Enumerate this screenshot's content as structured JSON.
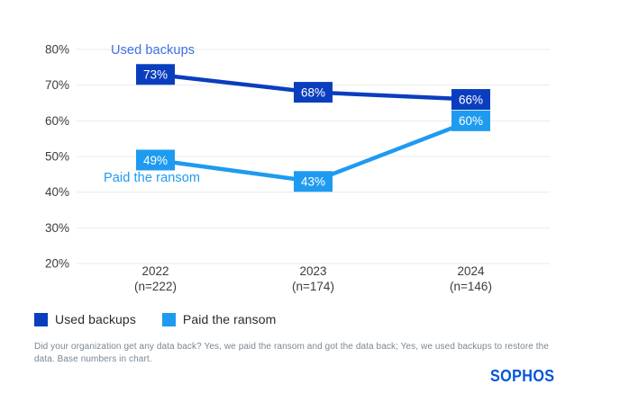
{
  "chart_data": {
    "type": "line",
    "title": "",
    "x_labels": [
      "2022",
      "2023",
      "2024"
    ],
    "x_sublabels": [
      "(n=222)",
      "(n=174)",
      "(n=146)"
    ],
    "series": [
      {
        "name": "Used backups",
        "values": [
          73,
          68,
          66
        ],
        "color": "#0A3EBE",
        "annotation_color": "#3E70E3"
      },
      {
        "name": "Paid the ransom",
        "values": [
          49,
          43,
          60
        ],
        "color": "#1E9BF0",
        "annotation_color": "#1E9BF0"
      }
    ],
    "ylim": [
      20,
      80
    ],
    "ytick_step": 10,
    "ytick_labels": [
      "80%",
      "70%",
      "60%",
      "50%",
      "40%",
      "30%",
      "20%"
    ],
    "data_label_suffix": "%",
    "grid": "horizontal-only",
    "gridline_color": "#f0f0f0",
    "axis_text_color": "#3c3c3c",
    "data_label_text_color": "#ffffff",
    "legend_position": "bottom-left"
  },
  "footnote": {
    "text": "Did your organization get any data back? Yes, we paid the ransom and got the data back; Yes, we used backups to restore the data. Base numbers in chart."
  },
  "brand": {
    "logo_text": "SOPHOS",
    "logo_color": "#0455d8"
  }
}
